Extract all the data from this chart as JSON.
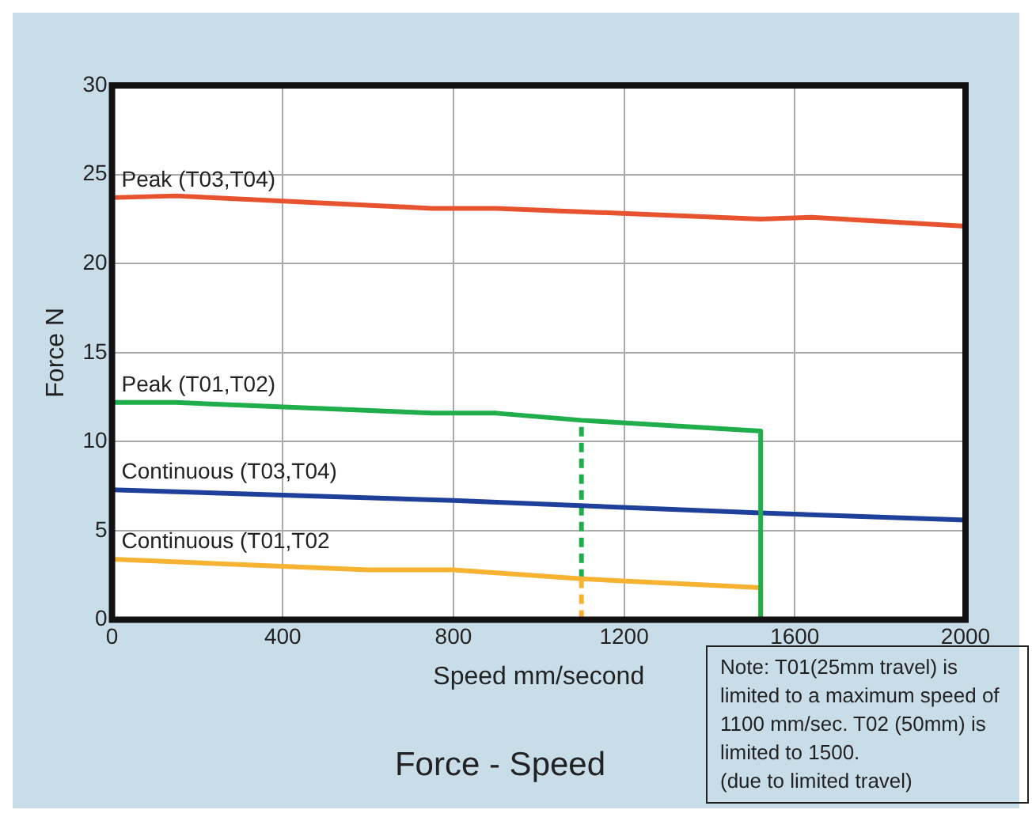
{
  "chart_data": {
    "type": "line",
    "title": "Force - Speed",
    "xlabel": "Speed mm/second",
    "ylabel": "Force N",
    "xlim": [
      0,
      2000
    ],
    "xticks": [
      0,
      400,
      800,
      1200,
      1600,
      2000
    ],
    "ylim": [
      0,
      30
    ],
    "yticks": [
      0,
      5,
      10,
      15,
      20,
      25,
      30
    ],
    "grid": true,
    "legend": false,
    "marker": "none",
    "series": [
      {
        "name": "Peak (T03,T04)",
        "color": "#e8532f",
        "x": [
          0,
          150,
          750,
          900,
          1520,
          1640,
          2000
        ],
        "values": [
          23.7,
          23.8,
          23.1,
          23.1,
          22.5,
          22.6,
          22.1
        ]
      },
      {
        "name": "Peak (T01,T02)",
        "color": "#1fae4b",
        "x": [
          0,
          150,
          750,
          900,
          1100,
          1520,
          1520
        ],
        "values": [
          12.2,
          12.2,
          11.6,
          11.6,
          11.2,
          10.6,
          0
        ]
      },
      {
        "name": "Continuous (T03,T04)",
        "color": "#1e3f9a",
        "x": [
          0,
          800,
          1520,
          2000
        ],
        "values": [
          7.3,
          6.7,
          6.0,
          5.6
        ]
      },
      {
        "name": "Continuous (T01,T02",
        "color": "#f7b231",
        "x": [
          0,
          600,
          800,
          1100,
          1520,
          1520
        ],
        "values": [
          3.4,
          2.8,
          2.8,
          2.3,
          1.8,
          0
        ]
      },
      {
        "color": "#1fae4b",
        "line_style": "dashed",
        "x": [
          1100,
          1100
        ],
        "values": [
          2.3,
          11.2
        ]
      },
      {
        "color": "#f7b231",
        "line_style": "dashed",
        "x": [
          1100,
          1100
        ],
        "values": [
          0,
          2.3
        ]
      }
    ],
    "annotations": [
      "Note: T01(25mm travel) is limited to a maximum speed of 1100 mm/sec. T02 (50mm) is limited to 1500.\n(due to limited travel)"
    ]
  }
}
